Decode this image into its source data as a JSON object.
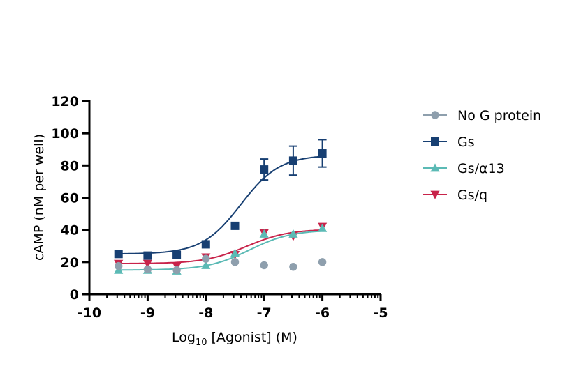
{
  "chart_data": {
    "type": "scatter",
    "xlabel": "Log10 [Agonist] (M)",
    "xlabel_main": "Log",
    "xlabel_sub": "10",
    "xlabel_rest": " [Agonist] (M)",
    "ylabel": "cAMP (nM per well)",
    "xlim": [
      -10,
      -5
    ],
    "ylim": [
      0,
      120
    ],
    "xticks": [
      -10,
      -9,
      -8,
      -7,
      -6,
      -5
    ],
    "yticks": [
      0,
      20,
      40,
      60,
      80,
      100,
      120
    ],
    "legend_position": "right",
    "x": [
      -9.5,
      -9,
      -8.5,
      -8,
      -7.5,
      -7,
      -6.5,
      -6
    ],
    "series": [
      {
        "name": "No G protein",
        "color": "#8e9fad",
        "marker": "circle",
        "values": [
          17.5,
          15.5,
          15,
          22,
          20,
          18,
          17,
          20
        ],
        "fit": null
      },
      {
        "name": "Gs",
        "color": "#173f72",
        "marker": "square",
        "values": [
          25,
          24,
          24.5,
          31,
          42.5,
          77.5,
          83,
          87.5
        ],
        "err_low": [
          null,
          null,
          null,
          null,
          null,
          71,
          74,
          79
        ],
        "err_high": [
          null,
          null,
          null,
          null,
          null,
          84,
          92,
          96
        ],
        "fit": {
          "bottom": 25,
          "top": 86.5,
          "logEC50": -7.4,
          "hill": 1.3
        }
      },
      {
        "name": "Gs/α13",
        "color": "#5bbab5",
        "marker": "triangle-up",
        "values": [
          15,
          15,
          14.5,
          18,
          25.5,
          37.5,
          37.5,
          41
        ],
        "fit": {
          "bottom": 15,
          "top": 40,
          "logEC50": -7.25,
          "hill": 1.2
        }
      },
      {
        "name": "Gs/q",
        "color": "#c8234a",
        "marker": "triangle-down",
        "values": [
          19,
          19,
          17.5,
          23,
          24.5,
          38,
          36,
          42
        ],
        "fit": {
          "bottom": 19,
          "top": 40.5,
          "logEC50": -7.3,
          "hill": 1.2
        }
      }
    ]
  }
}
